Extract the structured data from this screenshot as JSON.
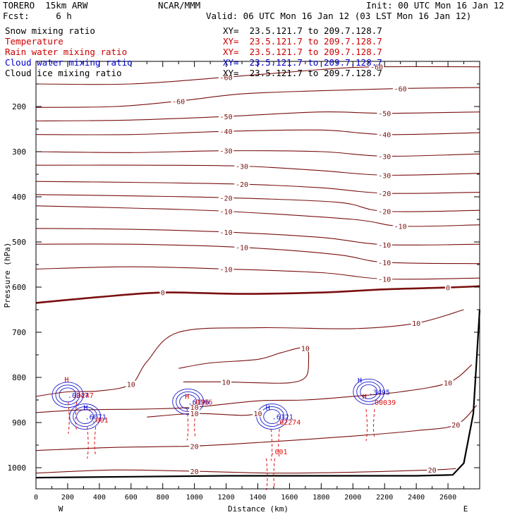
{
  "header": {
    "model": "TORERO  15km ARW",
    "center": "NCAR/MMM",
    "init": "Init: 00 UTC Mon 16 Jan 12",
    "fcst": "Fcst:     6 h",
    "valid": "Valid: 06 UTC Mon 16 Jan 12 (03 LST Mon 16 Jan 12)"
  },
  "legend": [
    {
      "label": "Snow mixing ratio",
      "color": "#000000",
      "xy": "XY=  23.5.121.7 to 209.7.128.7"
    },
    {
      "label": "Temperature",
      "color": "#cc0000",
      "xy": "XY=  23.5.121.7 to 209.7.128.7"
    },
    {
      "label": "Rain water mixing ratio",
      "color": "#cc0000",
      "xy": "XY=  23.5.121.7 to 209.7.128.7"
    },
    {
      "label": "Cloud water mixing ratio",
      "color": "#0000cc",
      "xy": "XY=  23.5.121.7 to 209.7.128.7"
    },
    {
      "label": "Cloud ice mixing ratio",
      "color": "#000000",
      "xy": "XY=  23.5.121.7 to 209.7.128.7"
    }
  ],
  "chart_data": {
    "type": "contour cross-section",
    "xlabel": "Distance (km)",
    "ylabel": "Pressure (hPa)",
    "xlim": [
      0,
      2800
    ],
    "ylim": [
      1050,
      100
    ],
    "x_ticks": [
      0,
      200,
      400,
      600,
      800,
      1000,
      1200,
      1400,
      1600,
      1800,
      2000,
      2200,
      2400,
      2600
    ],
    "y_ticks": [
      200,
      300,
      400,
      500,
      600,
      700,
      800,
      900,
      1000
    ],
    "x_end_labels": {
      "left": "W",
      "right": "E"
    },
    "temperature_contours": [
      {
        "value": -60,
        "points": [
          [
            0,
            150
          ],
          [
            600,
            150
          ],
          [
            1200,
            135
          ],
          [
            1800,
            118
          ],
          [
            2150,
            112
          ],
          [
            2800,
            112
          ]
        ]
      },
      {
        "value": -60,
        "points": [
          [
            0,
            202
          ],
          [
            500,
            200
          ],
          [
            900,
            188
          ],
          [
            1300,
            172
          ],
          [
            1800,
            165
          ],
          [
            2300,
            160
          ],
          [
            2800,
            158
          ]
        ]
      },
      {
        "value": -50,
        "points": [
          [
            0,
            232
          ],
          [
            600,
            230
          ],
          [
            1200,
            222
          ],
          [
            1800,
            212
          ],
          [
            2200,
            215
          ],
          [
            2800,
            212
          ]
        ]
      },
      {
        "value": -40,
        "points": [
          [
            0,
            262
          ],
          [
            600,
            262
          ],
          [
            1200,
            255
          ],
          [
            1800,
            252
          ],
          [
            2200,
            262
          ],
          [
            2800,
            258
          ]
        ]
      },
      {
        "value": -30,
        "points": [
          [
            0,
            300
          ],
          [
            600,
            302
          ],
          [
            1200,
            298
          ],
          [
            1800,
            300
          ],
          [
            2200,
            310
          ],
          [
            2800,
            305
          ]
        ]
      },
      {
        "value": -30,
        "points": [
          [
            0,
            330
          ],
          [
            700,
            330
          ],
          [
            1300,
            332
          ],
          [
            1800,
            342
          ],
          [
            2200,
            352
          ],
          [
            2800,
            348
          ]
        ]
      },
      {
        "value": -20,
        "points": [
          [
            0,
            366
          ],
          [
            600,
            368
          ],
          [
            1300,
            372
          ],
          [
            1800,
            380
          ],
          [
            2200,
            392
          ],
          [
            2800,
            390
          ]
        ]
      },
      {
        "value": -20,
        "points": [
          [
            0,
            395
          ],
          [
            600,
            398
          ],
          [
            1200,
            402
          ],
          [
            1900,
            412
          ],
          [
            2200,
            432
          ],
          [
            2800,
            430
          ]
        ]
      },
      {
        "value": -10,
        "points": [
          [
            0,
            420
          ],
          [
            600,
            425
          ],
          [
            1200,
            432
          ],
          [
            2000,
            450
          ],
          [
            2300,
            465
          ],
          [
            2800,
            462
          ]
        ]
      },
      {
        "value": -10,
        "points": [
          [
            0,
            470
          ],
          [
            600,
            472
          ],
          [
            1200,
            478
          ],
          [
            1800,
            490
          ],
          [
            2200,
            506
          ],
          [
            2800,
            505
          ]
        ]
      },
      {
        "value": -10,
        "points": [
          [
            0,
            505
          ],
          [
            600,
            505
          ],
          [
            1300,
            512
          ],
          [
            1900,
            528
          ],
          [
            2200,
            545
          ],
          [
            2800,
            548
          ]
        ]
      },
      {
        "value": -10,
        "points": [
          [
            0,
            560
          ],
          [
            600,
            555
          ],
          [
            1200,
            560
          ],
          [
            1800,
            568
          ],
          [
            2200,
            582
          ],
          [
            2800,
            580
          ]
        ]
      },
      {
        "value": 0,
        "bold": true,
        "points": [
          [
            0,
            635
          ],
          [
            400,
            622
          ],
          [
            800,
            612
          ],
          [
            1300,
            615
          ],
          [
            1800,
            612
          ],
          [
            2200,
            605
          ],
          [
            2600,
            601
          ],
          [
            2800,
            598
          ]
        ]
      },
      {
        "value": 10,
        "points": [
          [
            0,
            842
          ],
          [
            200,
            832
          ],
          [
            400,
            830
          ],
          [
            600,
            815
          ],
          [
            700,
            765
          ],
          [
            900,
            700
          ],
          [
            1400,
            690
          ],
          [
            2000,
            692
          ],
          [
            2400,
            680
          ],
          [
            2700,
            650
          ]
        ]
      },
      {
        "value": 10,
        "points": [
          [
            900,
            780
          ],
          [
            1100,
            768
          ],
          [
            1400,
            760
          ],
          [
            1550,
            745
          ],
          [
            1700,
            735
          ],
          [
            1720,
            768
          ],
          [
            1700,
            800
          ],
          [
            1600,
            812
          ],
          [
            1400,
            812
          ],
          [
            1200,
            810
          ],
          [
            1000,
            810
          ],
          [
            930,
            810
          ]
        ]
      },
      {
        "value": 10,
        "points": [
          [
            0,
            878
          ],
          [
            300,
            872
          ],
          [
            700,
            870
          ],
          [
            1000,
            866
          ],
          [
            1400,
            852
          ],
          [
            1700,
            850
          ],
          [
            2000,
            842
          ],
          [
            2300,
            832
          ],
          [
            2600,
            812
          ],
          [
            2750,
            772
          ]
        ]
      },
      {
        "value": 10,
        "points": [
          [
            700,
            888
          ],
          [
            1000,
            880
          ],
          [
            1300,
            884
          ],
          [
            1400,
            880
          ]
        ]
      },
      {
        "value": 20,
        "points": [
          [
            0,
            962
          ],
          [
            500,
            955
          ],
          [
            1000,
            952
          ],
          [
            1500,
            942
          ],
          [
            2000,
            930
          ],
          [
            2400,
            918
          ],
          [
            2650,
            905
          ],
          [
            2780,
            862
          ]
        ]
      },
      {
        "value": 20,
        "points": [
          [
            0,
            1012
          ],
          [
            500,
            1005
          ],
          [
            1000,
            1008
          ],
          [
            1500,
            1012
          ],
          [
            2000,
            1010
          ],
          [
            2500,
            1005
          ],
          [
            2650,
            1002
          ]
        ]
      }
    ],
    "terrain": [
      [
        0,
        1022
      ],
      [
        600,
        1020
      ],
      [
        1200,
        1018
      ],
      [
        1800,
        1018
      ],
      [
        2400,
        1018
      ],
      [
        2630,
        1016
      ],
      [
        2700,
        990
      ],
      [
        2760,
        880
      ],
      [
        2800,
        650
      ]
    ],
    "rain_labels": [
      {
        "text": ".0247",
        "x": 230,
        "y": 845
      },
      {
        "text": ".001",
        "x": 350,
        "y": 900
      },
      {
        "text": ".0196",
        "x": 980,
        "y": 860
      },
      {
        "text": ".02274",
        "x": 1510,
        "y": 905
      },
      {
        "text": ".001",
        "x": 1480,
        "y": 970
      },
      {
        "text": ".00039",
        "x": 2110,
        "y": 861
      }
    ],
    "cloud_labels": [
      {
        "text": ".0247",
        "x": 200,
        "y": 845
      },
      {
        "text": ".6071",
        "x": 310,
        "y": 893
      },
      {
        "text": ".6196",
        "x": 960,
        "y": 860
      },
      {
        "text": ".6121",
        "x": 1490,
        "y": 893
      },
      {
        "text": ".3495",
        "x": 2100,
        "y": 838
      }
    ],
    "highs": [
      {
        "text": "H",
        "x": 180,
        "y": 810,
        "color": "#cc0000"
      },
      {
        "text": "H",
        "x": 300,
        "y": 873,
        "color": "#0000cc"
      },
      {
        "text": "H",
        "x": 940,
        "y": 848,
        "color": "#cc0000"
      },
      {
        "text": "H",
        "x": 1450,
        "y": 873,
        "color": "#0000cc"
      },
      {
        "text": "H",
        "x": 2030,
        "y": 812,
        "color": "#0000cc"
      },
      {
        "text": "H",
        "x": 2060,
        "y": 848,
        "color": "#cc0000"
      }
    ]
  }
}
